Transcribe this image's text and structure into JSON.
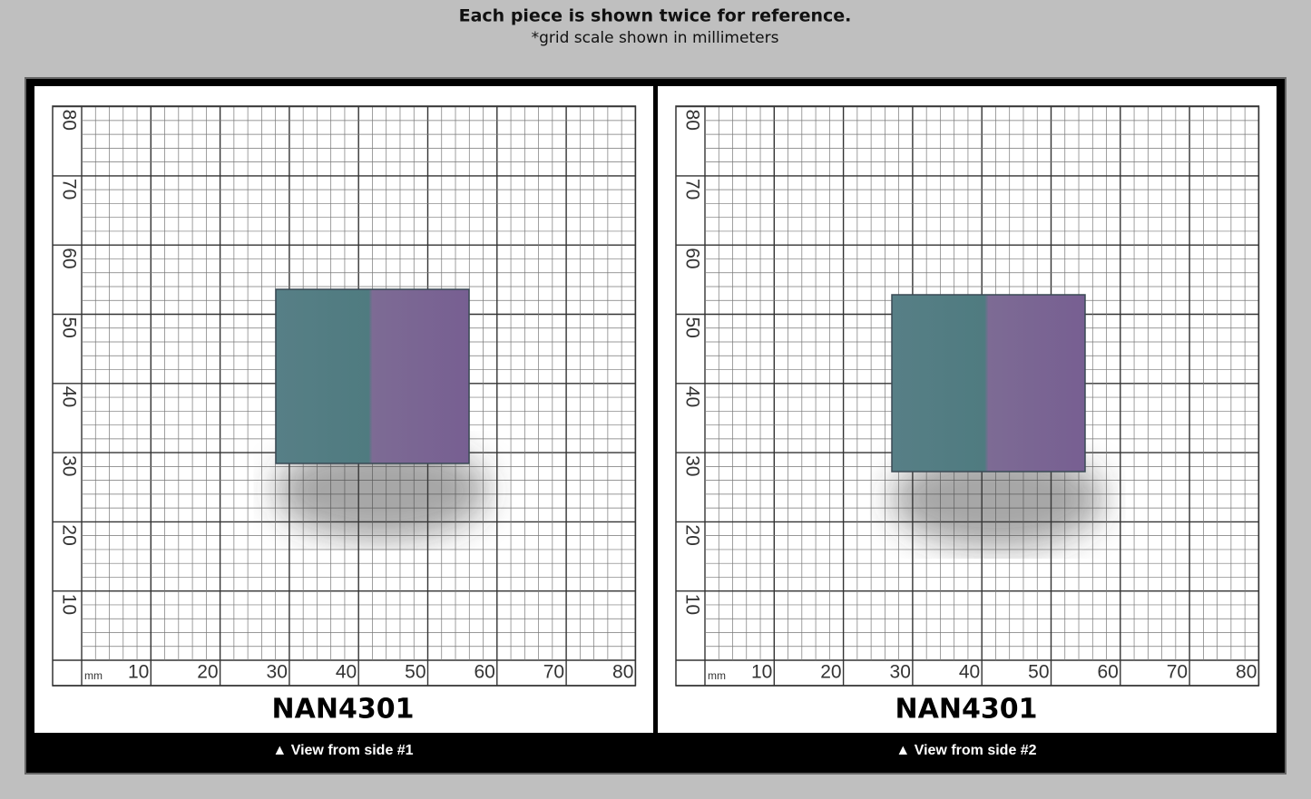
{
  "header": {
    "title": "Each piece is shown twice for reference.",
    "subtitle": "*grid scale shown in millimeters"
  },
  "panels": [
    {
      "name": "NAN4301",
      "caption": "▲ View from side #1",
      "unit": "mm",
      "x_labels": [
        10,
        20,
        30,
        40,
        50,
        60,
        70,
        80
      ],
      "y_labels": [
        10,
        20,
        30,
        40,
        50,
        60,
        70,
        80
      ]
    },
    {
      "name": "NAN4301",
      "caption": "▲ View from side #2",
      "unit": "mm",
      "x_labels": [
        10,
        20,
        30,
        40,
        50,
        60,
        70,
        80
      ],
      "y_labels": [
        10,
        20,
        30,
        40,
        50,
        60,
        70,
        80
      ]
    }
  ]
}
